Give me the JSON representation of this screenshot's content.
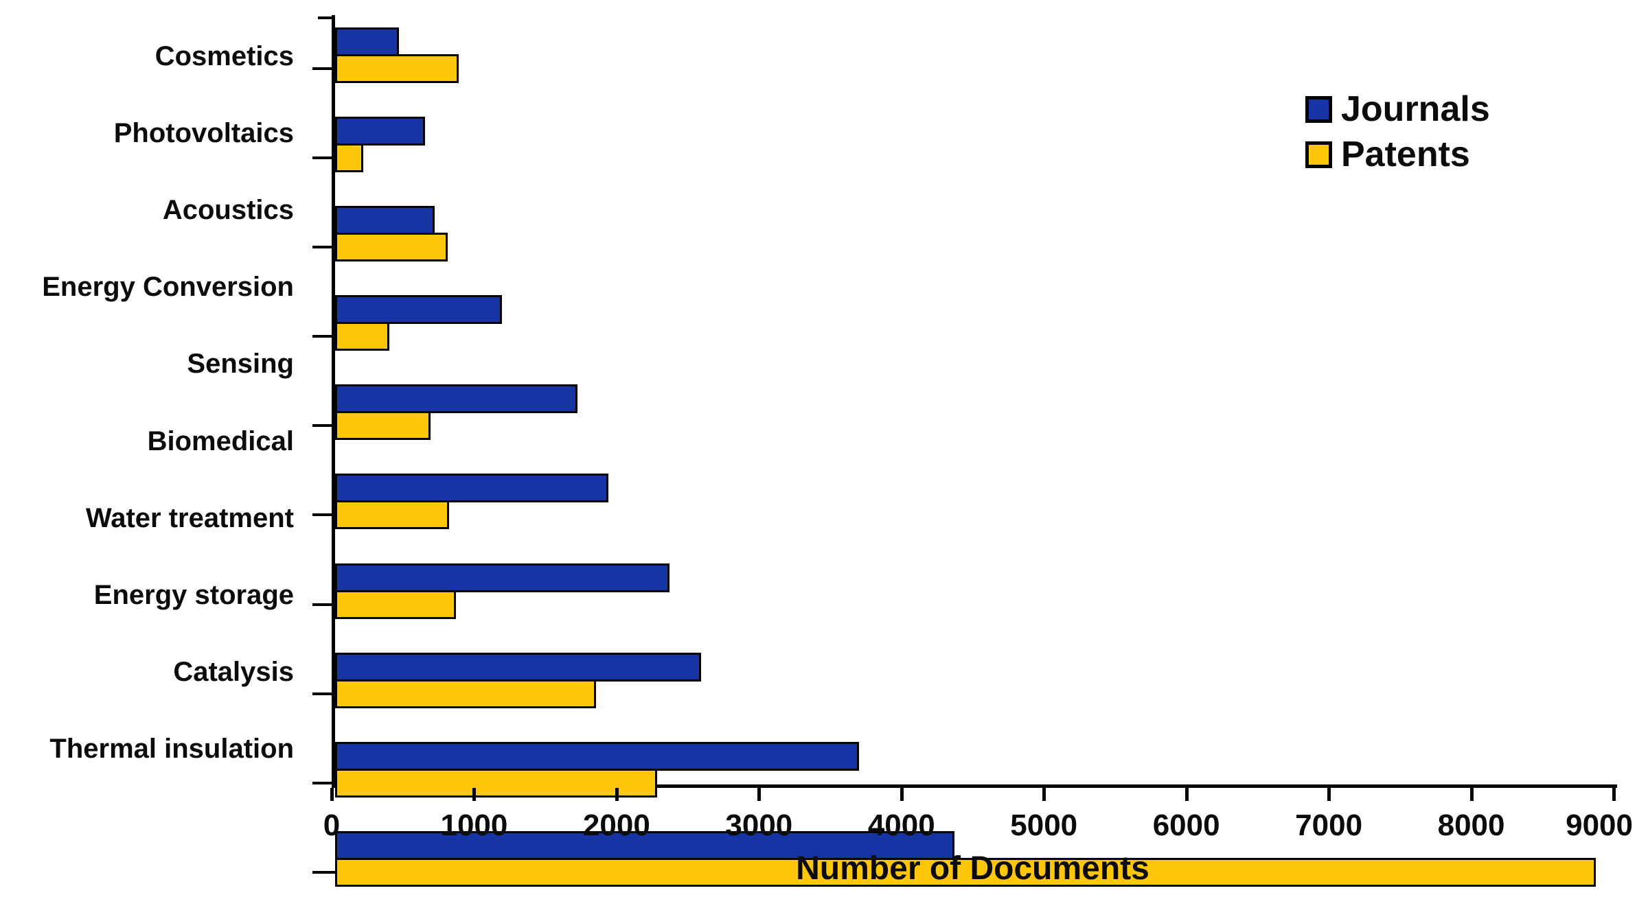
{
  "chart_data": {
    "type": "bar",
    "orientation": "horizontal",
    "title": "",
    "xlabel": "Number of Documents",
    "ylabel": "",
    "xlim": [
      0,
      9000
    ],
    "x_ticks": [
      0,
      1000,
      2000,
      3000,
      4000,
      5000,
      6000,
      7000,
      8000,
      9000
    ],
    "grid": false,
    "legend_position": "top-right",
    "categories": [
      "Cosmetics",
      "Photovoltaics",
      "Acoustics",
      "Energy Conversion",
      "Sensing",
      "Biomedical",
      "Water treatment",
      "Energy storage",
      "Catalysis",
      "Thermal insulation"
    ],
    "series": [
      {
        "name": "Journals",
        "color": "#1634A3",
        "values": [
          450,
          630,
          700,
          1170,
          1700,
          1920,
          2350,
          2570,
          3680,
          4350
        ]
      },
      {
        "name": "Patents",
        "color": "#FFC709",
        "values": [
          870,
          200,
          790,
          380,
          670,
          800,
          850,
          1830,
          2260,
          8850
        ]
      }
    ],
    "bar_border_color": "#000000",
    "axis_color": "#000000"
  }
}
